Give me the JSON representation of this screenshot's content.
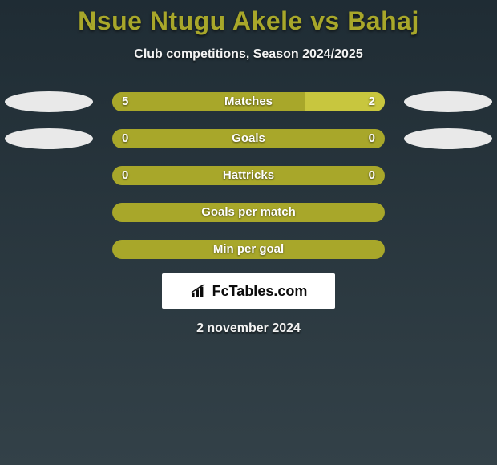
{
  "colors": {
    "bg_top": "#1f2c34",
    "bg_bottom": "#334148",
    "title_text": "#a8a72a",
    "subtitle_text": "#f2f2f2",
    "bar_track": "#5a6168",
    "bar_olive": "#a8a72a",
    "bar_alt": "#c8c63e",
    "bar_text": "#ffffff",
    "ellipse_fill": "#e9e9e9",
    "logo_bg": "#ffffff",
    "logo_text": "#0b0b0b",
    "footer_text": "#f2f2f2"
  },
  "title": "Nsue Ntugu Akele vs Bahaj",
  "subtitle": "Club competitions, Season 2024/2025",
  "rows": [
    {
      "label": "Matches",
      "left_value": "5",
      "right_value": "2",
      "left_pct": 71,
      "right_pct": 29,
      "left_color": "#a8a72a",
      "right_color": "#c8c63e",
      "show_left_ellipse": true,
      "show_right_ellipse": true,
      "track_color": "#a8a72a"
    },
    {
      "label": "Goals",
      "left_value": "0",
      "right_value": "0",
      "left_pct": 0,
      "right_pct": 0,
      "left_color": "#a8a72a",
      "right_color": "#a8a72a",
      "show_left_ellipse": true,
      "show_right_ellipse": true,
      "track_color": "#a8a72a"
    },
    {
      "label": "Hattricks",
      "left_value": "0",
      "right_value": "0",
      "left_pct": 0,
      "right_pct": 0,
      "left_color": "#a8a72a",
      "right_color": "#a8a72a",
      "show_left_ellipse": false,
      "show_right_ellipse": false,
      "track_color": "#a8a72a"
    },
    {
      "label": "Goals per match",
      "left_value": "",
      "right_value": "",
      "left_pct": 0,
      "right_pct": 0,
      "left_color": "#a8a72a",
      "right_color": "#a8a72a",
      "show_left_ellipse": false,
      "show_right_ellipse": false,
      "track_color": "#a8a72a"
    },
    {
      "label": "Min per goal",
      "left_value": "",
      "right_value": "",
      "left_pct": 0,
      "right_pct": 0,
      "left_color": "#a8a72a",
      "right_color": "#a8a72a",
      "show_left_ellipse": false,
      "show_right_ellipse": false,
      "track_color": "#a8a72a"
    }
  ],
  "logo": {
    "text": "FcTables.com"
  },
  "footer_date": "2 november 2024",
  "typography": {
    "title_fontsize": 32,
    "subtitle_fontsize": 16,
    "bar_label_fontsize": 15,
    "logo_fontsize": 18,
    "footer_fontsize": 16
  }
}
